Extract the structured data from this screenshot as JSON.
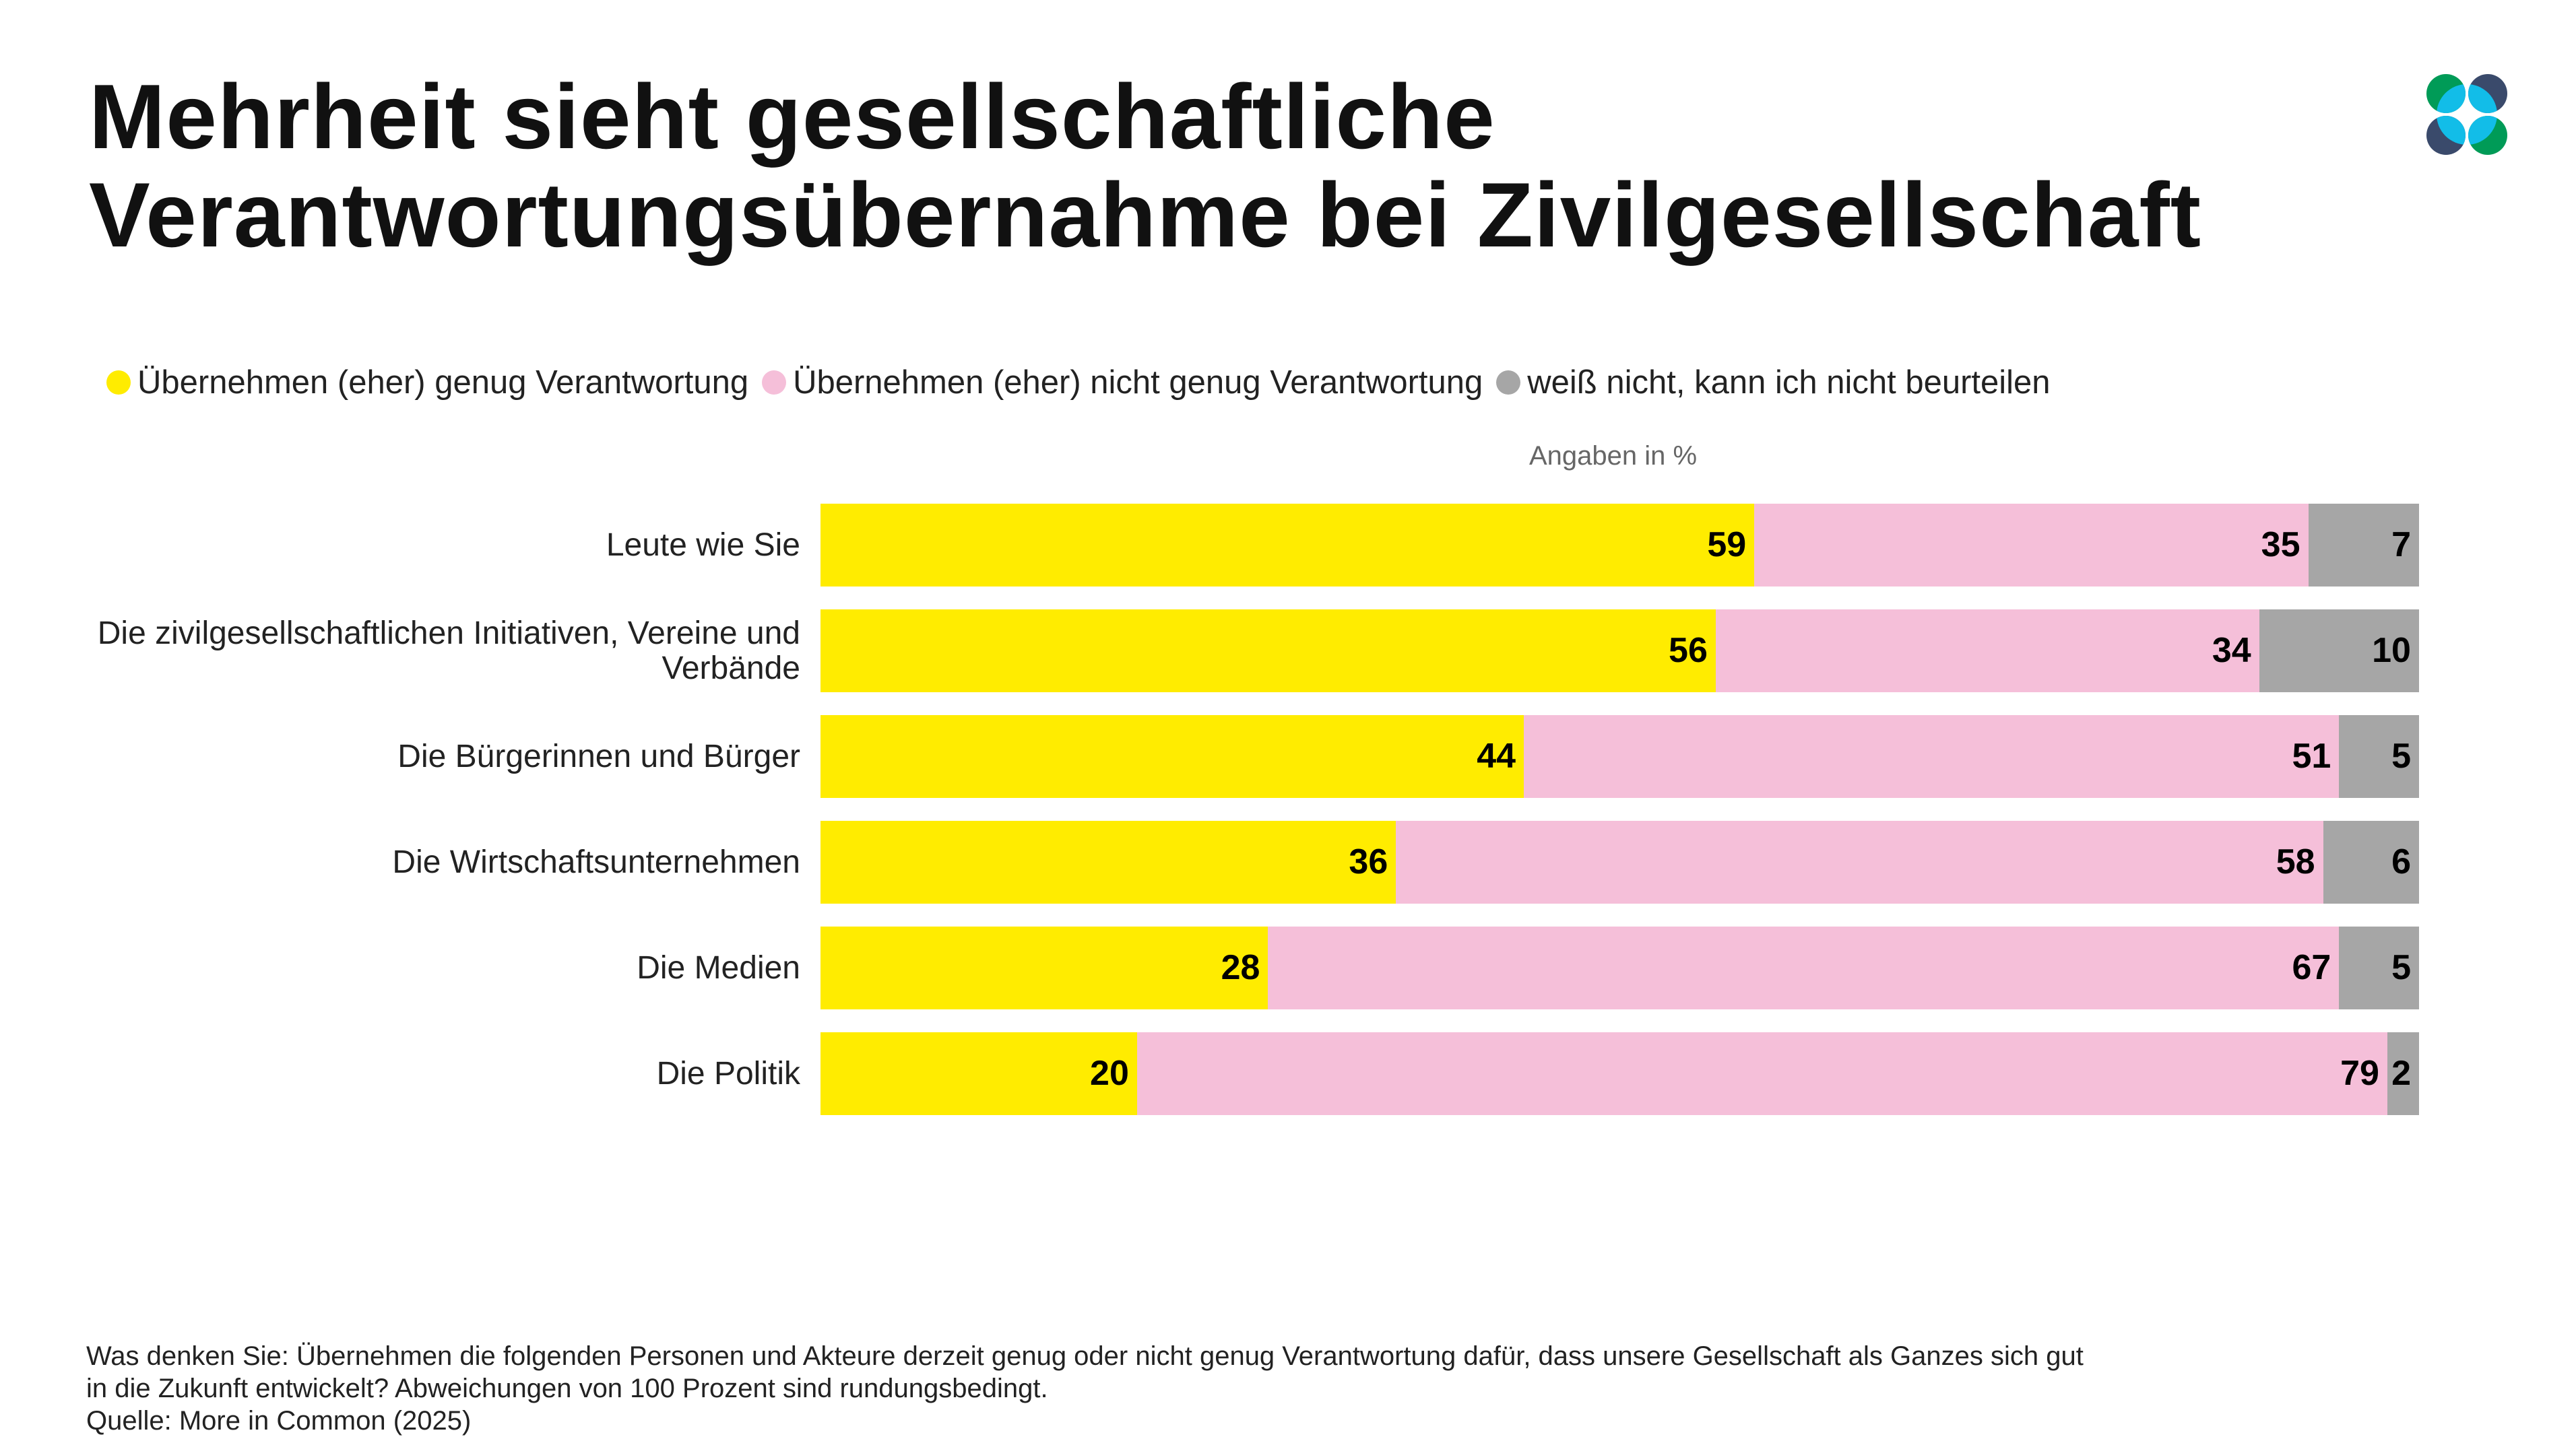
{
  "title": {
    "line1": "Mehrheit sieht gesellschaftliche",
    "line2": "Verantwortungsübernahme bei Zivilgesellschaft"
  },
  "logo": {
    "colors": [
      "#009B57",
      "#3A4A6B",
      "#12BDE8"
    ]
  },
  "chart_data": {
    "type": "bar",
    "orientation": "horizontal",
    "stacked": true,
    "unit_label": "Angaben in %",
    "categories": [
      "Leute wie Sie",
      "Die zivilgesellschaftlichen Initiativen, Vereine und Verbände",
      "Die Bürgerinnen und Bürger",
      "Die Wirtschaftsunternehmen",
      "Die Medien",
      "Die Politik"
    ],
    "series": [
      {
        "name": "Übernehmen (eher) genug Verantwortung",
        "color": "#FFEC00",
        "values": [
          59,
          56,
          44,
          36,
          28,
          20
        ]
      },
      {
        "name": "Übernehmen (eher) nicht genug Verantwortung",
        "color": "#F5BFD9",
        "values": [
          35,
          34,
          51,
          58,
          67,
          79
        ]
      },
      {
        "name": "weiß nicht, kann ich nicht beurteilen",
        "color": "#A6A6A6",
        "values": [
          7,
          10,
          5,
          6,
          5,
          2
        ]
      }
    ],
    "legend_position": "top-left",
    "grid": false
  },
  "footer": {
    "question": "Was denken Sie: Übernehmen die folgenden Personen und Akteure derzeit genug oder nicht genug Verantwortung dafür, dass unsere Gesellschaft als Ganzes sich gut",
    "question2": "in die Zukunft entwickelt? Abweichungen von 100 Prozent sind rundungsbedingt.",
    "source": "Quelle: More in Common (2025)"
  }
}
